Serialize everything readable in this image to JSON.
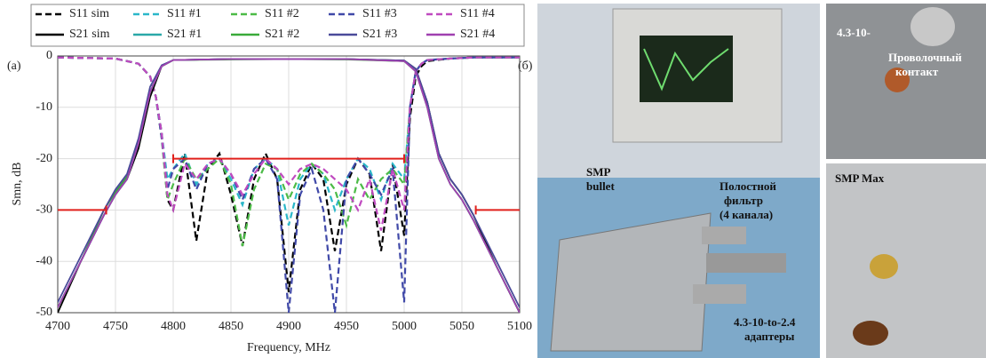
{
  "chart_data": {
    "type": "line",
    "panel_label": "(a)",
    "xlabel": "Frequency, MHz",
    "ylabel": "Smn, dB",
    "xlim": [
      4700,
      5100
    ],
    "xticks": [
      4700,
      4750,
      4800,
      4850,
      4900,
      4950,
      5000,
      5050,
      5100
    ],
    "ylim": [
      -50,
      0
    ],
    "yticks": [
      -50,
      -40,
      -30,
      -20,
      -10,
      0
    ],
    "grid": true,
    "legend": "top",
    "series": [
      {
        "name": "S11 sim",
        "color": "#000000",
        "dash": true,
        "x": [
          4700,
          4750,
          4770,
          4780,
          4785,
          4790,
          4795,
          4800,
          4810,
          4820,
          4830,
          4840,
          4850,
          4860,
          4870,
          4880,
          4890,
          4900,
          4910,
          4920,
          4930,
          4940,
          4950,
          4960,
          4970,
          4980,
          4990,
          5000,
          5005,
          5010,
          5015,
          5020,
          5040,
          5060,
          5100
        ],
        "values": [
          -0.3,
          -0.5,
          -1.5,
          -4,
          -8,
          -15,
          -28,
          -30,
          -19,
          -36,
          -22,
          -19,
          -27,
          -37,
          -24,
          -19,
          -24,
          -46,
          -26,
          -21,
          -24,
          -38,
          -25,
          -20,
          -23,
          -38,
          -21,
          -35,
          -12,
          -4,
          -2,
          -1,
          -0.5,
          -0.3,
          -0.3
        ]
      },
      {
        "name": "S11 #1",
        "color": "#2ab7c9",
        "dash": true,
        "x": [
          4700,
          4750,
          4770,
          4780,
          4785,
          4790,
          4795,
          4800,
          4810,
          4820,
          4830,
          4840,
          4850,
          4860,
          4870,
          4880,
          4890,
          4900,
          4910,
          4920,
          4930,
          4940,
          4950,
          4960,
          4970,
          4980,
          4990,
          5000,
          5005,
          5010,
          5015,
          5020,
          5040,
          5060,
          5100
        ],
        "values": [
          -0.3,
          -0.5,
          -1.5,
          -4,
          -8,
          -15,
          -24,
          -22,
          -19,
          -25,
          -21,
          -20,
          -24,
          -29,
          -22,
          -20,
          -22,
          -33,
          -24,
          -21,
          -23,
          -30,
          -24,
          -20,
          -22,
          -28,
          -21,
          -24,
          -10,
          -3,
          -1.5,
          -0.8,
          -0.5,
          -0.3,
          -0.3
        ]
      },
      {
        "name": "S11 #2",
        "color": "#4cbb47",
        "dash": true,
        "x": [
          4700,
          4750,
          4770,
          4780,
          4785,
          4790,
          4795,
          4800,
          4810,
          4820,
          4830,
          4840,
          4850,
          4860,
          4870,
          4880,
          4890,
          4900,
          4910,
          4920,
          4930,
          4940,
          4950,
          4960,
          4970,
          4980,
          4990,
          5000,
          5005,
          5010,
          5015,
          5020,
          5040,
          5060,
          5100
        ],
        "values": [
          -0.3,
          -0.5,
          -1.5,
          -4,
          -8,
          -16,
          -28,
          -25,
          -20,
          -24,
          -22,
          -20,
          -25,
          -37,
          -26,
          -21,
          -22,
          -28,
          -23,
          -21,
          -23,
          -26,
          -33,
          -24,
          -28,
          -24,
          -22,
          -25,
          -10,
          -3,
          -1.5,
          -0.8,
          -0.5,
          -0.3,
          -0.3
        ]
      },
      {
        "name": "S11 #3",
        "color": "#4049a8",
        "dash": true,
        "x": [
          4700,
          4750,
          4770,
          4780,
          4785,
          4790,
          4795,
          4800,
          4810,
          4820,
          4830,
          4840,
          4850,
          4860,
          4870,
          4880,
          4890,
          4900,
          4910,
          4920,
          4930,
          4940,
          4950,
          4960,
          4970,
          4980,
          4990,
          5000,
          5005,
          5010,
          5015,
          5020,
          5040,
          5060,
          5100
        ],
        "values": [
          -0.3,
          -0.5,
          -1.5,
          -4,
          -8,
          -16,
          -26,
          -22,
          -20,
          -26,
          -21,
          -20,
          -23,
          -28,
          -22,
          -20,
          -24,
          -50,
          -27,
          -22,
          -30,
          -50,
          -24,
          -20,
          -23,
          -27,
          -22,
          -48,
          -10,
          -3,
          -1.5,
          -0.8,
          -0.5,
          -0.3,
          -0.3
        ]
      },
      {
        "name": "S11 #4",
        "color": "#c04ac0",
        "dash": true,
        "x": [
          4700,
          4750,
          4770,
          4780,
          4785,
          4790,
          4795,
          4800,
          4810,
          4820,
          4830,
          4840,
          4850,
          4860,
          4870,
          4880,
          4890,
          4900,
          4910,
          4920,
          4930,
          4940,
          4950,
          4960,
          4970,
          4980,
          4990,
          5000,
          5005,
          5010,
          5015,
          5020,
          5040,
          5060,
          5100
        ],
        "values": [
          -0.3,
          -0.5,
          -1.5,
          -4,
          -8,
          -15,
          -27,
          -30,
          -21,
          -24,
          -21,
          -20,
          -23,
          -27,
          -23,
          -20,
          -22,
          -25,
          -22,
          -21,
          -22,
          -24,
          -26,
          -30,
          -24,
          -34,
          -22,
          -30,
          -10,
          -3,
          -1.5,
          -0.8,
          -0.5,
          -0.3,
          -0.3
        ]
      },
      {
        "name": "S21 sim",
        "color": "#000000",
        "dash": false,
        "x": [
          4700,
          4720,
          4740,
          4750,
          4760,
          4770,
          4780,
          4790,
          4800,
          4850,
          4900,
          4950,
          5000,
          5010,
          5020,
          5030,
          5040,
          5050,
          5060,
          5080,
          5100
        ],
        "values": [
          -50,
          -40,
          -31,
          -27,
          -24,
          -18,
          -8,
          -2,
          -0.8,
          -0.6,
          -0.6,
          -0.6,
          -0.9,
          -2.5,
          -9,
          -19,
          -24,
          -27,
          -31,
          -41,
          -50
        ]
      },
      {
        "name": "S21 #1",
        "color": "#2aa8a8",
        "dash": false,
        "x": [
          4700,
          4720,
          4740,
          4750,
          4760,
          4770,
          4780,
          4790,
          4800,
          4850,
          4900,
          4950,
          5000,
          5010,
          5020,
          5030,
          5040,
          5050,
          5060,
          5080,
          5100
        ],
        "values": [
          -49,
          -40,
          -31,
          -27,
          -24,
          -17,
          -7,
          -2,
          -0.8,
          -0.6,
          -0.6,
          -0.6,
          -1,
          -3,
          -10,
          -20,
          -25,
          -28,
          -32,
          -41,
          -50
        ]
      },
      {
        "name": "S21 #2",
        "color": "#3aaa3a",
        "dash": false,
        "x": [
          4700,
          4720,
          4740,
          4750,
          4760,
          4770,
          4780,
          4790,
          4800,
          4850,
          4900,
          4950,
          5000,
          5010,
          5020,
          5030,
          5040,
          5050,
          5060,
          5080,
          5100
        ],
        "values": [
          -49,
          -40,
          -30,
          -26.5,
          -23.5,
          -17,
          -7,
          -2,
          -0.8,
          -0.7,
          -0.6,
          -0.7,
          -1,
          -3,
          -10,
          -20,
          -25,
          -28,
          -32,
          -41,
          -50
        ]
      },
      {
        "name": "S21 #3",
        "color": "#4a4a9a",
        "dash": false,
        "x": [
          4700,
          4720,
          4740,
          4750,
          4760,
          4770,
          4780,
          4790,
          4800,
          4850,
          4900,
          4950,
          5000,
          5010,
          5020,
          5030,
          5040,
          5050,
          5060,
          5080,
          5100
        ],
        "values": [
          -48,
          -39,
          -30,
          -26,
          -23,
          -16,
          -6,
          -1.8,
          -0.8,
          -0.6,
          -0.6,
          -0.6,
          -0.9,
          -2.5,
          -9,
          -19,
          -24,
          -27,
          -31,
          -40,
          -49
        ]
      },
      {
        "name": "S21 #4",
        "color": "#a040b0",
        "dash": false,
        "x": [
          4700,
          4720,
          4740,
          4750,
          4760,
          4770,
          4780,
          4790,
          4800,
          4850,
          4900,
          4950,
          5000,
          5010,
          5020,
          5030,
          5040,
          5050,
          5060,
          5080,
          5100
        ],
        "values": [
          -49,
          -40,
          -31,
          -27,
          -24,
          -17,
          -7,
          -2,
          -0.8,
          -0.6,
          -0.6,
          -0.6,
          -1,
          -3,
          -10,
          -20,
          -25,
          -28,
          -32,
          -41,
          -50
        ]
      }
    ],
    "spec_color": "#e0201c",
    "spec_lines": [
      {
        "x": [
          4700,
          4742
        ],
        "y": -30
      },
      {
        "x": [
          4800,
          5000
        ],
        "y": -20
      },
      {
        "x": [
          5062,
          5100
        ],
        "y": -30
      }
    ]
  },
  "photos": {
    "panel_label": "(б)",
    "smp_bullet": [
      "SMP",
      "bullet"
    ],
    "filter": [
      "Полостной",
      "фильтр",
      "(4 канала)"
    ],
    "adapters": [
      "4.3-10-to-2.4",
      "адаптеры"
    ],
    "connector": "4.3-10-",
    "wire_contact": [
      "Проволочный",
      "контакт"
    ],
    "smp_max": "SMP Max"
  }
}
